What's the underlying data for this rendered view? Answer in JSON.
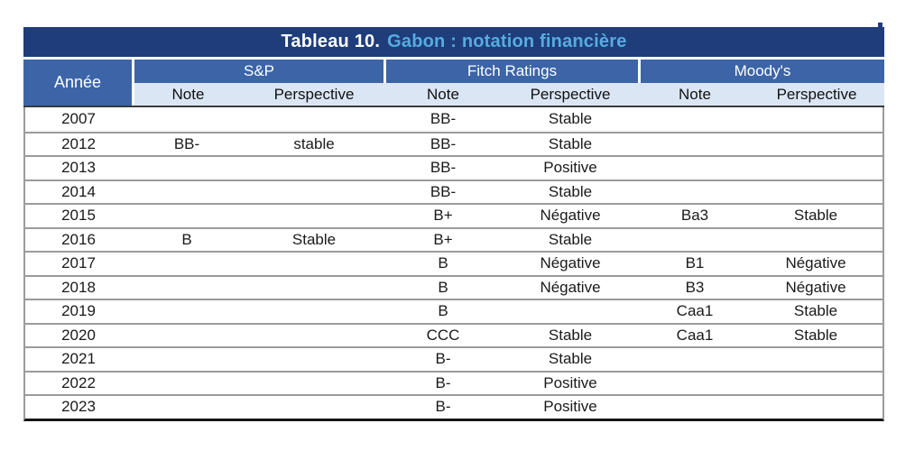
{
  "title": {
    "prefix": "Tableau 10.",
    "subject": "Gabon : notation financière"
  },
  "colors": {
    "title_bar_background": "#1e3d7a",
    "title_subject_text": "#56ace0",
    "group_header_background": "#3c64a7",
    "subheader_background": "#dbe6f5",
    "row_separator": "#9b9b9b",
    "bottom_border": "#161616"
  },
  "header": {
    "year": "Année",
    "groups": [
      {
        "name": "S&P",
        "sub": [
          "Note",
          "Perspective"
        ]
      },
      {
        "name": "Fitch Ratings",
        "sub": [
          "Note",
          "Perspective"
        ]
      },
      {
        "name": "Moody's",
        "sub": [
          "Note",
          "Perspective"
        ]
      }
    ]
  },
  "rows": [
    {
      "year": "2007",
      "sp_note": "",
      "sp_perspective": "",
      "fitch_note": "BB-",
      "fitch_perspective": "Stable",
      "moodys_note": "",
      "moodys_perspective": ""
    },
    {
      "year": "2012",
      "sp_note": "BB-",
      "sp_perspective": "stable",
      "fitch_note": "BB-",
      "fitch_perspective": "Stable",
      "moodys_note": "",
      "moodys_perspective": ""
    },
    {
      "year": "2013",
      "sp_note": "",
      "sp_perspective": "",
      "fitch_note": "BB-",
      "fitch_perspective": "Positive",
      "moodys_note": "",
      "moodys_perspective": ""
    },
    {
      "year": "2014",
      "sp_note": "",
      "sp_perspective": "",
      "fitch_note": "BB-",
      "fitch_perspective": "Stable",
      "moodys_note": "",
      "moodys_perspective": ""
    },
    {
      "year": "2015",
      "sp_note": "",
      "sp_perspective": "",
      "fitch_note": "B+",
      "fitch_perspective": "Négative",
      "moodys_note": "Ba3",
      "moodys_perspective": "Stable"
    },
    {
      "year": "2016",
      "sp_note": "B",
      "sp_perspective": "Stable",
      "fitch_note": "B+",
      "fitch_perspective": "Stable",
      "moodys_note": "",
      "moodys_perspective": ""
    },
    {
      "year": "2017",
      "sp_note": "",
      "sp_perspective": "",
      "fitch_note": "B",
      "fitch_perspective": "Négative",
      "moodys_note": "B1",
      "moodys_perspective": "Négative"
    },
    {
      "year": "2018",
      "sp_note": "",
      "sp_perspective": "",
      "fitch_note": "B",
      "fitch_perspective": "Négative",
      "moodys_note": "B3",
      "moodys_perspective": "Négative"
    },
    {
      "year": "2019",
      "sp_note": "",
      "sp_perspective": "",
      "fitch_note": "B",
      "fitch_perspective": "",
      "moodys_note": "Caa1",
      "moodys_perspective": "Stable"
    },
    {
      "year": "2020",
      "sp_note": "",
      "sp_perspective": "",
      "fitch_note": "CCC",
      "fitch_perspective": "Stable",
      "moodys_note": "Caa1",
      "moodys_perspective": "Stable"
    },
    {
      "year": "2021",
      "sp_note": "",
      "sp_perspective": "",
      "fitch_note": "B-",
      "fitch_perspective": "Stable",
      "moodys_note": "",
      "moodys_perspective": ""
    },
    {
      "year": "2022",
      "sp_note": "",
      "sp_perspective": "",
      "fitch_note": "B-",
      "fitch_perspective": "Positive",
      "moodys_note": "",
      "moodys_perspective": ""
    },
    {
      "year": "2023",
      "sp_note": "",
      "sp_perspective": "",
      "fitch_note": "B-",
      "fitch_perspective": "Positive",
      "moodys_note": "",
      "moodys_perspective": ""
    }
  ]
}
